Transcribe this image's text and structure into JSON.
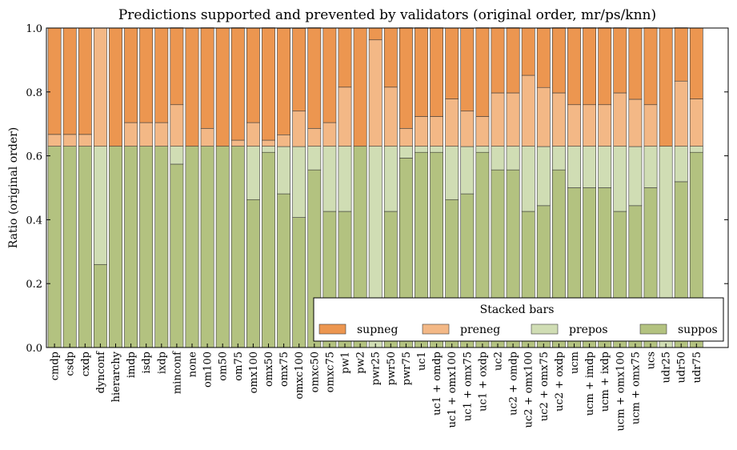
{
  "chart_data": {
    "type": "bar",
    "stacked": true,
    "title": "Predictions supported and prevented by validators (original order, mr/ps/knn)",
    "xlabel": "",
    "ylabel": "Ratio (original order)",
    "ylim": [
      0,
      1.0
    ],
    "yticks": [
      "0.0",
      "0.2",
      "0.4",
      "0.6",
      "0.8",
      "1.0"
    ],
    "legend": {
      "title": "Stacked bars",
      "placement": "lower-right"
    },
    "categories": [
      "cmdp",
      "csdp",
      "cxdp",
      "dynconf",
      "hierarchy",
      "imdp",
      "isdp",
      "ixdp",
      "minconf",
      "none",
      "om100",
      "om50",
      "om75",
      "omx100",
      "omx50",
      "omx75",
      "omxc100",
      "omxc50",
      "omxc75",
      "pw1",
      "pw2",
      "pwr25",
      "pwr50",
      "pwr75",
      "uc1",
      "uc1 + omdp",
      "uc1 + omx100",
      "uc1 + omx75",
      "uc1 + oxdp",
      "uc2",
      "uc2 + omdp",
      "uc2 + omx100",
      "uc2 + omx75",
      "uc2 + oxdp",
      "ucm",
      "ucm + imdp",
      "ucm + ixdp",
      "ucm + omx100",
      "ucm + omx75",
      "ucs",
      "udr25",
      "udr50",
      "udr75"
    ],
    "series": [
      {
        "name": "supneg",
        "color": "#ec9650",
        "values": [
          0.333,
          0.333,
          0.333,
          0,
          0.37,
          0.296,
          0.296,
          0.296,
          0.241,
          0.37,
          0.315,
          0.37,
          0.352,
          0.296,
          0.352,
          0.333,
          0.259,
          0.315,
          0.296,
          0.185,
          0.37,
          0.037,
          0.185,
          0.315,
          0.278,
          0.278,
          0.222,
          0.259,
          0.278,
          0.204,
          0.204,
          0.148,
          0.185,
          0.204,
          0.241,
          0.241,
          0.241,
          0.204,
          0.222,
          0.241,
          0.37,
          0.167,
          0.222
        ]
      },
      {
        "name": "preneg",
        "color": "#f3b886",
        "values": [
          0.037,
          0.037,
          0.037,
          0.37,
          0,
          0.074,
          0.074,
          0.074,
          0.13,
          0,
          0.056,
          0,
          0.019,
          0.074,
          0.019,
          0.037,
          0.111,
          0.056,
          0.074,
          0.185,
          0,
          0.333,
          0.185,
          0.056,
          0.093,
          0.093,
          0.148,
          0.111,
          0.093,
          0.167,
          0.167,
          0.222,
          0.185,
          0.167,
          0.13,
          0.13,
          0.13,
          0.167,
          0.148,
          0.13,
          0,
          0.204,
          0.148
        ]
      },
      {
        "name": "prepos",
        "color": "#d0ddb4",
        "values": [
          0,
          0,
          0,
          0.37,
          0,
          0,
          0,
          0,
          0.056,
          0,
          0,
          0,
          0,
          0.167,
          0.019,
          0.148,
          0.222,
          0.074,
          0.204,
          0.204,
          0,
          0.63,
          0.204,
          0.037,
          0.019,
          0.019,
          0.167,
          0.148,
          0.019,
          0.074,
          0.074,
          0.204,
          0.185,
          0.074,
          0.13,
          0.13,
          0.13,
          0.204,
          0.185,
          0.13,
          0.63,
          0.111,
          0.019
        ]
      },
      {
        "name": "suppos",
        "color": "#b3c280",
        "values": [
          0.63,
          0.63,
          0.63,
          0.26,
          0.63,
          0.63,
          0.63,
          0.63,
          0.574,
          0.63,
          0.63,
          0.63,
          0.63,
          0.463,
          0.611,
          0.481,
          0.407,
          0.556,
          0.426,
          0.426,
          0.63,
          0,
          0.426,
          0.593,
          0.611,
          0.611,
          0.463,
          0.481,
          0.611,
          0.556,
          0.556,
          0.426,
          0.444,
          0.556,
          0.5,
          0.5,
          0.5,
          0.426,
          0.444,
          0.5,
          0,
          0.519,
          0.611
        ]
      }
    ]
  }
}
